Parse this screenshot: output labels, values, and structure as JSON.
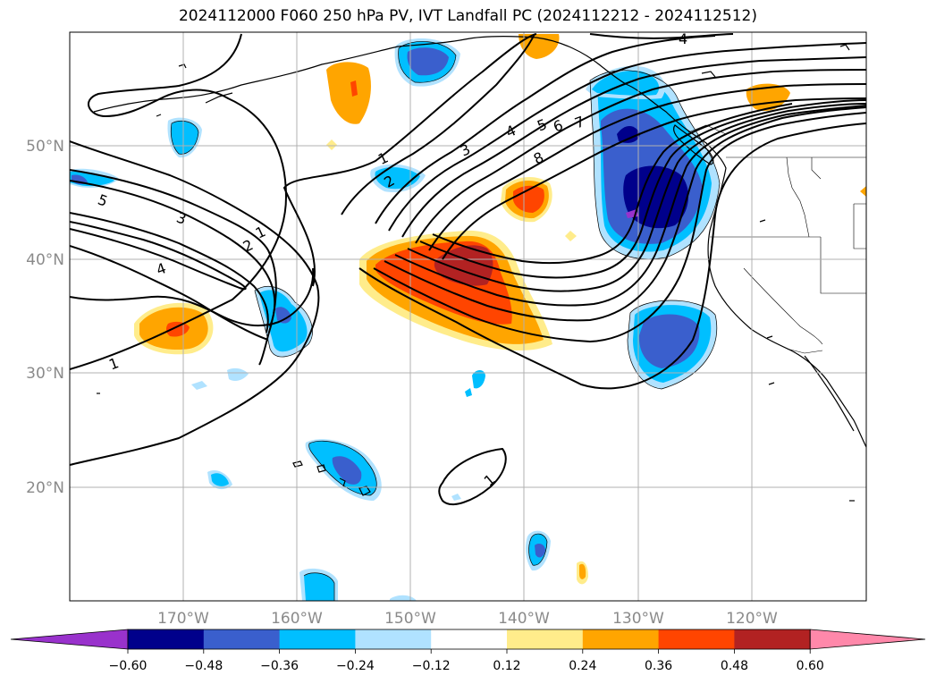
{
  "title": "2024112000 F060 250 hPa PV, IVT Landfall PC (2024112212 - 2024112512)",
  "map": {
    "lat_labels": [
      "50°N",
      "40°N",
      "30°N",
      "20°N"
    ],
    "lon_labels": [
      "170°W",
      "160°W",
      "150°W",
      "140°W",
      "130°W",
      "120°W"
    ]
  },
  "contour_labels": [
    "1",
    "2",
    "3",
    "4",
    "5",
    "6",
    "7",
    "8",
    "1",
    "2",
    "3",
    "4",
    "5",
    "1",
    "1",
    "4"
  ],
  "colorbar": {
    "colors": [
      "#9932cc",
      "#00008b",
      "#3a5fcd",
      "#00bfff",
      "#b0e2ff",
      "#ffffff",
      "#ffec8b",
      "#ffa500",
      "#ff4500",
      "#b22222",
      "#ff88aa"
    ],
    "tick_labels": [
      "−0.60",
      "−0.48",
      "−0.36",
      "−0.24",
      "−0.12",
      "0.12",
      "0.24",
      "0.36",
      "0.48",
      "0.60"
    ]
  },
  "colors": {
    "grid": "#b0b0b0",
    "contour": "#000000",
    "axis_label": "#8a8a8a"
  }
}
